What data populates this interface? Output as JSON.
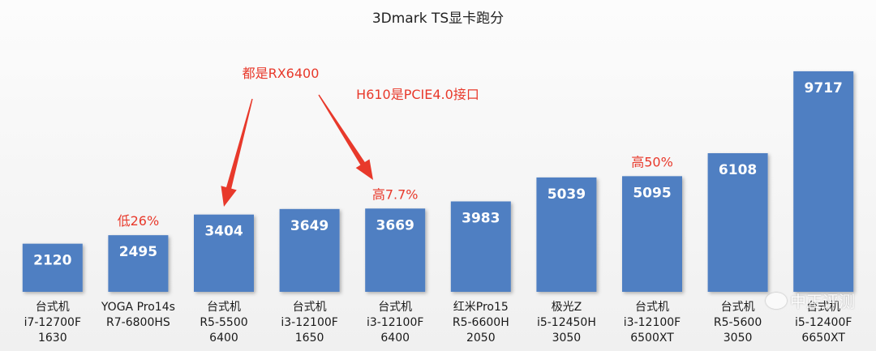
{
  "chart_data": {
    "type": "bar",
    "title": "3Dmark TS显卡跑分",
    "xlabel": "",
    "ylabel": "",
    "ylim": [
      0,
      11000
    ],
    "grid": false,
    "legend": "none",
    "bar_color": "#4f7fc2",
    "value_label_color": "#ffffff",
    "annotation_color": "#e8392b",
    "categories": [
      [
        "台式机",
        "i7-12700F",
        "1630"
      ],
      [
        "YOGA Pro14s",
        "R7-6800HS"
      ],
      [
        "台式机",
        "R5-5500",
        "6400"
      ],
      [
        "台式机",
        "i3-12100F",
        "1650"
      ],
      [
        "台式机",
        "i3-12100F",
        "6400"
      ],
      [
        "红米Pro15",
        "R5-6600H",
        "2050"
      ],
      [
        "极光Z",
        "i5-12450H",
        "3050"
      ],
      [
        "台式机",
        "i3-12100F",
        "6500XT"
      ],
      [
        "台式机",
        "R5-5600",
        "3050"
      ],
      [
        "台式机",
        "i5-12400F",
        "6650XT"
      ]
    ],
    "values": [
      2120,
      2495,
      3404,
      3649,
      3669,
      3983,
      5039,
      5095,
      6108,
      9717
    ],
    "annotations": [
      {
        "text": "低26%",
        "bar_index": 1
      },
      {
        "text": "高7.7%",
        "bar_index": 4
      },
      {
        "text": "高50%",
        "bar_index": 7
      },
      {
        "text": "都是RX6400",
        "arrow_to_bar": 2
      },
      {
        "text": "H610是PCIE4.0接口",
        "arrow_to_bar": 4
      }
    ]
  },
  "watermark": {
    "text": "中正评测",
    "icon": "wechat-icon"
  }
}
